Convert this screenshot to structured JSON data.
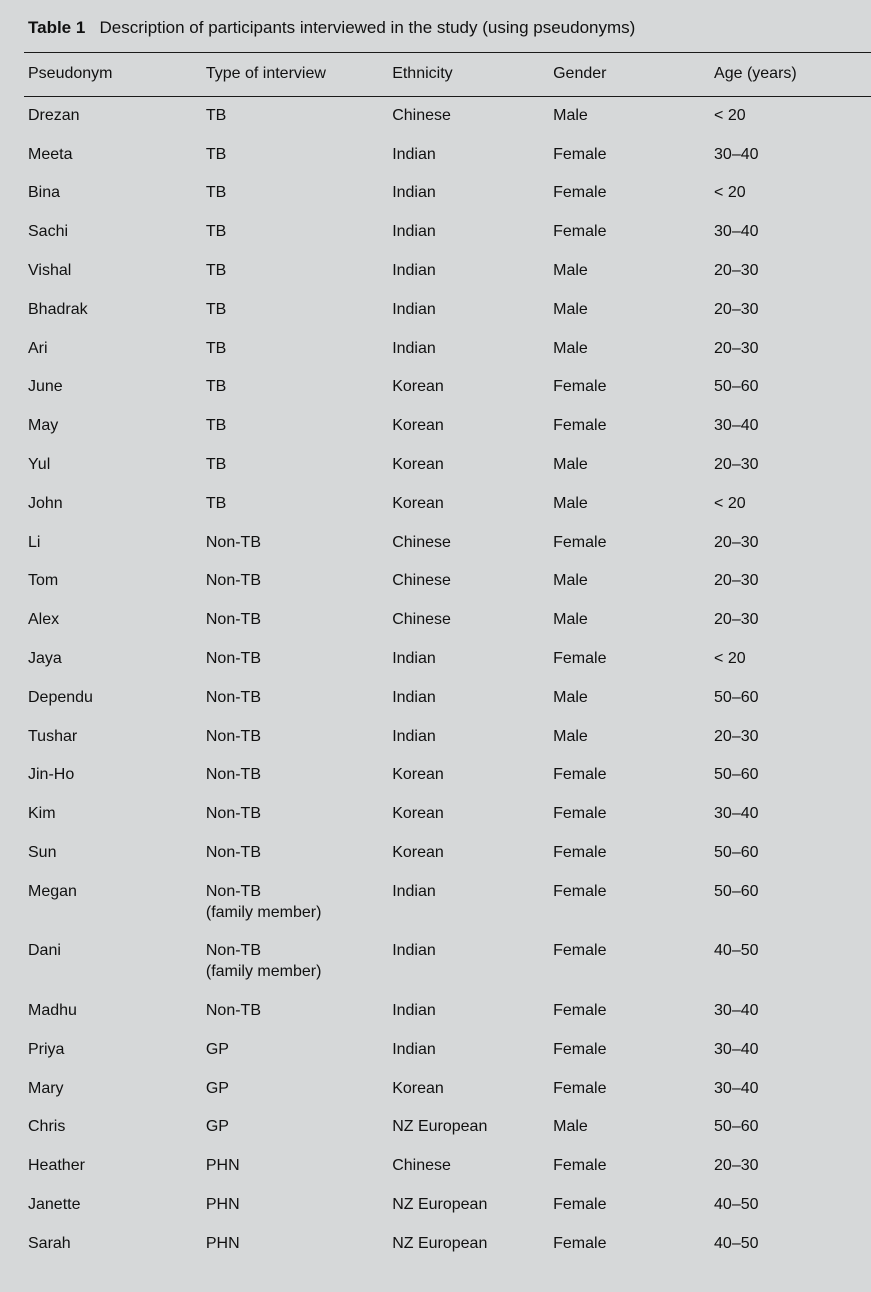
{
  "table": {
    "number_label": "Table 1",
    "caption": "Description of participants interviewed in the study (using pseudonyms)",
    "columns": [
      "Pseudonym",
      "Type of interview",
      "Ethnicity",
      "Gender",
      "Age (years)"
    ],
    "rows": [
      [
        "Drezan",
        "TB",
        "Chinese",
        "Male",
        "< 20"
      ],
      [
        "Meeta",
        "TB",
        "Indian",
        "Female",
        "30–40"
      ],
      [
        "Bina",
        "TB",
        "Indian",
        "Female",
        "< 20"
      ],
      [
        "Sachi",
        "TB",
        "Indian",
        "Female",
        "30–40"
      ],
      [
        "Vishal",
        "TB",
        "Indian",
        "Male",
        "20–30"
      ],
      [
        "Bhadrak",
        "TB",
        "Indian",
        "Male",
        "20–30"
      ],
      [
        "Ari",
        "TB",
        "Indian",
        "Male",
        "20–30"
      ],
      [
        "June",
        "TB",
        "Korean",
        "Female",
        "50–60"
      ],
      [
        "May",
        "TB",
        "Korean",
        "Female",
        "30–40"
      ],
      [
        "Yul",
        "TB",
        "Korean",
        "Male",
        "20–30"
      ],
      [
        "John",
        "TB",
        "Korean",
        "Male",
        "< 20"
      ],
      [
        "Li",
        "Non-TB",
        "Chinese",
        "Female",
        "20–30"
      ],
      [
        "Tom",
        "Non-TB",
        "Chinese",
        "Male",
        "20–30"
      ],
      [
        "Alex",
        "Non-TB",
        "Chinese",
        "Male",
        "20–30"
      ],
      [
        "Jaya",
        "Non-TB",
        "Indian",
        "Female",
        "< 20"
      ],
      [
        "Dependu",
        "Non-TB",
        "Indian",
        "Male",
        "50–60"
      ],
      [
        "Tushar",
        "Non-TB",
        "Indian",
        "Male",
        "20–30"
      ],
      [
        "Jin-Ho",
        "Non-TB",
        "Korean",
        "Female",
        "50–60"
      ],
      [
        "Kim",
        "Non-TB",
        "Korean",
        "Female",
        "30–40"
      ],
      [
        "Sun",
        "Non-TB",
        "Korean",
        "Female",
        "50–60"
      ],
      [
        "Megan",
        "Non-TB\n(family member)",
        "Indian",
        "Female",
        "50–60"
      ],
      [
        "Dani",
        "Non-TB\n(family member)",
        "Indian",
        "Female",
        "40–50"
      ],
      [
        "Madhu",
        "Non-TB",
        "Indian",
        "Female",
        "30–40"
      ],
      [
        "Priya",
        "GP",
        "Indian",
        "Female",
        "30–40"
      ],
      [
        "Mary",
        "GP",
        "Korean",
        "Female",
        "30–40"
      ],
      [
        "Chris",
        "GP",
        "NZ European",
        "Male",
        "50–60"
      ],
      [
        "Heather",
        "PHN",
        "Chinese",
        "Female",
        "20–30"
      ],
      [
        "Janette",
        "PHN",
        "NZ European",
        "Female",
        "40–50"
      ],
      [
        "Sarah",
        "PHN",
        "NZ European",
        "Female",
        "40–50"
      ]
    ],
    "colors": {
      "background": "#d6d8d9",
      "rule": "#1a1a1a",
      "text": "#111111"
    },
    "font_size_pt": 12
  }
}
